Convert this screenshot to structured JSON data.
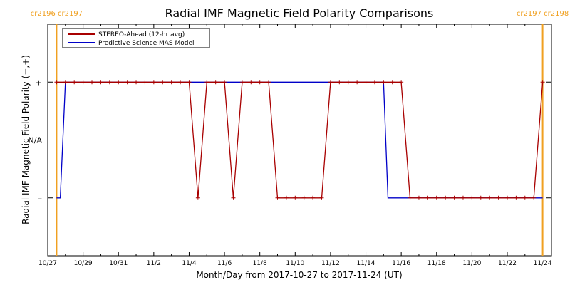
{
  "colors": {
    "stereo": "#a80000",
    "model": "#0000c8",
    "boundary": "#f0a020",
    "axis": "#000000"
  },
  "chart_data": {
    "type": "line",
    "title": "Radial IMF Magnetic Field Polarity Comparisons",
    "xlabel": "Month/Day from 2017-10-27 to 2017-11-24 (UT)",
    "ylabel": "Radial IMF Magnetic Field Polarity (−,+)",
    "xlim": [
      "2017-10-27",
      "2017-11-24T12:00"
    ],
    "ylim": [
      -2,
      2
    ],
    "x_ticks": [
      "10/27",
      "10/29",
      "10/31",
      "11/2",
      "11/4",
      "11/6",
      "11/8",
      "11/10",
      "11/12",
      "11/14",
      "11/16",
      "11/18",
      "11/20",
      "11/22",
      "11/24"
    ],
    "y_ticks": [
      {
        "value": 1,
        "label": "+"
      },
      {
        "value": 0,
        "label": "N/A"
      },
      {
        "value": -1,
        "label": "–"
      }
    ],
    "legend": {
      "placement": "top-left",
      "entries": [
        {
          "series": "STEREO-Ahead (12-hr avg)",
          "color": "#a80000"
        },
        {
          "series": "Predictive Science MAS Model",
          "color": "#0000c8"
        }
      ]
    },
    "boundaries": [
      {
        "x": "2017-10-27T12:00",
        "labels": [
          "cr2196",
          "cr2197"
        ]
      },
      {
        "x": "2017-11-24T00:00",
        "labels": [
          "cr2197",
          "cr2198"
        ]
      }
    ],
    "series": [
      {
        "name": "STEREO-Ahead (12-hr avg)",
        "marker": "+",
        "points": [
          [
            "2017-10-27T12:00",
            1
          ],
          [
            "2017-10-28T00:00",
            1
          ],
          [
            "2017-10-28T12:00",
            1
          ],
          [
            "2017-10-29T00:00",
            1
          ],
          [
            "2017-10-29T12:00",
            1
          ],
          [
            "2017-10-30T00:00",
            1
          ],
          [
            "2017-10-30T12:00",
            1
          ],
          [
            "2017-10-31T00:00",
            1
          ],
          [
            "2017-10-31T12:00",
            1
          ],
          [
            "2017-11-01T00:00",
            1
          ],
          [
            "2017-11-01T12:00",
            1
          ],
          [
            "2017-11-02T00:00",
            1
          ],
          [
            "2017-11-02T12:00",
            1
          ],
          [
            "2017-11-03T00:00",
            1
          ],
          [
            "2017-11-03T12:00",
            1
          ],
          [
            "2017-11-04T00:00",
            1
          ],
          [
            "2017-11-04T12:00",
            -1
          ],
          [
            "2017-11-05T00:00",
            1
          ],
          [
            "2017-11-05T12:00",
            1
          ],
          [
            "2017-11-06T00:00",
            1
          ],
          [
            "2017-11-06T12:00",
            -1
          ],
          [
            "2017-11-07T00:00",
            1
          ],
          [
            "2017-11-07T12:00",
            1
          ],
          [
            "2017-11-08T00:00",
            1
          ],
          [
            "2017-11-08T12:00",
            1
          ],
          [
            "2017-11-09T00:00",
            -1
          ],
          [
            "2017-11-09T12:00",
            -1
          ],
          [
            "2017-11-10T00:00",
            -1
          ],
          [
            "2017-11-10T12:00",
            -1
          ],
          [
            "2017-11-11T00:00",
            -1
          ],
          [
            "2017-11-11T12:00",
            -1
          ],
          [
            "2017-11-12T00:00",
            1
          ],
          [
            "2017-11-12T12:00",
            1
          ],
          [
            "2017-11-13T00:00",
            1
          ],
          [
            "2017-11-13T12:00",
            1
          ],
          [
            "2017-11-14T00:00",
            1
          ],
          [
            "2017-11-14T12:00",
            1
          ],
          [
            "2017-11-15T00:00",
            1
          ],
          [
            "2017-11-15T12:00",
            1
          ],
          [
            "2017-11-16T00:00",
            1
          ],
          [
            "2017-11-16T12:00",
            -1
          ],
          [
            "2017-11-17T00:00",
            -1
          ],
          [
            "2017-11-17T12:00",
            -1
          ],
          [
            "2017-11-18T00:00",
            -1
          ],
          [
            "2017-11-18T12:00",
            -1
          ],
          [
            "2017-11-19T00:00",
            -1
          ],
          [
            "2017-11-19T12:00",
            -1
          ],
          [
            "2017-11-20T00:00",
            -1
          ],
          [
            "2017-11-20T12:00",
            -1
          ],
          [
            "2017-11-21T00:00",
            -1
          ],
          [
            "2017-11-21T12:00",
            -1
          ],
          [
            "2017-11-22T00:00",
            -1
          ],
          [
            "2017-11-22T12:00",
            -1
          ],
          [
            "2017-11-23T00:00",
            -1
          ],
          [
            "2017-11-23T12:00",
            -1
          ],
          [
            "2017-11-24T00:00",
            1
          ]
        ]
      },
      {
        "name": "Predictive Science MAS Model",
        "marker": "none",
        "points": [
          [
            "2017-10-27T12:00",
            -1
          ],
          [
            "2017-10-27T17:00",
            -1
          ],
          [
            "2017-10-28T00:00",
            1
          ],
          [
            "2017-11-15T00:00",
            1
          ],
          [
            "2017-11-15T06:00",
            -1
          ],
          [
            "2017-11-24T00:00",
            -1
          ]
        ]
      }
    ]
  }
}
